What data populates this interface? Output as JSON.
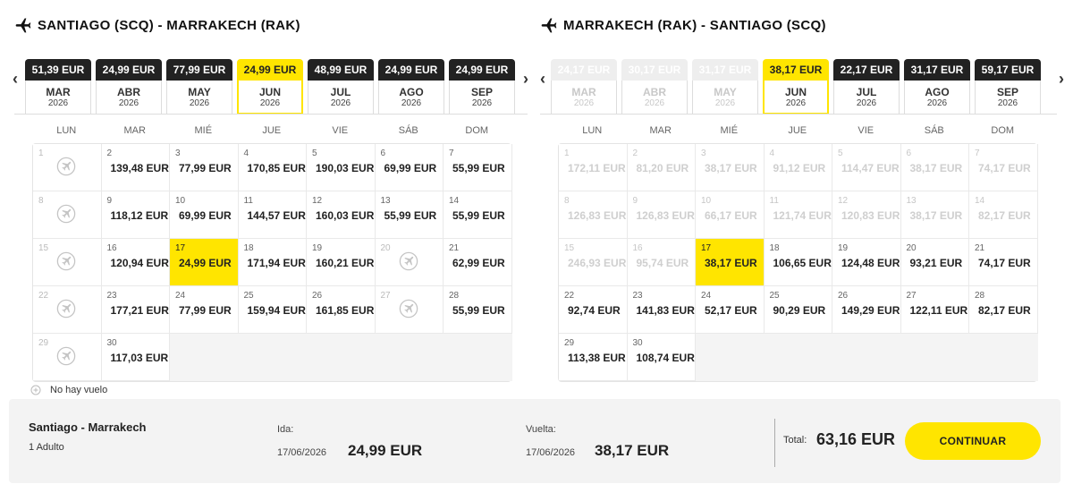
{
  "outbound": {
    "title": "SANTIAGO (SCQ) - MARRAKECH (RAK)",
    "months": [
      {
        "price": "51,39 EUR",
        "month": "MAR",
        "year": "2026",
        "state": "normal"
      },
      {
        "price": "24,99 EUR",
        "month": "ABR",
        "year": "2026",
        "state": "normal"
      },
      {
        "price": "77,99 EUR",
        "month": "MAY",
        "year": "2026",
        "state": "normal"
      },
      {
        "price": "24,99 EUR",
        "month": "JUN",
        "year": "2026",
        "state": "active"
      },
      {
        "price": "48,99 EUR",
        "month": "JUL",
        "year": "2026",
        "state": "normal"
      },
      {
        "price": "24,99 EUR",
        "month": "AGO",
        "year": "2026",
        "state": "normal"
      },
      {
        "price": "24,99 EUR",
        "month": "SEP",
        "year": "2026",
        "state": "normal"
      }
    ],
    "days": [
      {
        "d": "1",
        "p": "",
        "s": "noflight"
      },
      {
        "d": "2",
        "p": "139,48 EUR",
        "s": "normal"
      },
      {
        "d": "3",
        "p": "77,99 EUR",
        "s": "normal"
      },
      {
        "d": "4",
        "p": "170,85 EUR",
        "s": "normal"
      },
      {
        "d": "5",
        "p": "190,03 EUR",
        "s": "normal"
      },
      {
        "d": "6",
        "p": "69,99 EUR",
        "s": "normal"
      },
      {
        "d": "7",
        "p": "55,99 EUR",
        "s": "normal"
      },
      {
        "d": "8",
        "p": "",
        "s": "noflight"
      },
      {
        "d": "9",
        "p": "118,12 EUR",
        "s": "normal"
      },
      {
        "d": "10",
        "p": "69,99 EUR",
        "s": "normal"
      },
      {
        "d": "11",
        "p": "144,57 EUR",
        "s": "normal"
      },
      {
        "d": "12",
        "p": "160,03 EUR",
        "s": "normal"
      },
      {
        "d": "13",
        "p": "55,99 EUR",
        "s": "normal"
      },
      {
        "d": "14",
        "p": "55,99 EUR",
        "s": "normal"
      },
      {
        "d": "15",
        "p": "",
        "s": "noflight"
      },
      {
        "d": "16",
        "p": "120,94 EUR",
        "s": "normal"
      },
      {
        "d": "17",
        "p": "24,99 EUR",
        "s": "selected"
      },
      {
        "d": "18",
        "p": "171,94 EUR",
        "s": "normal"
      },
      {
        "d": "19",
        "p": "160,21 EUR",
        "s": "normal"
      },
      {
        "d": "20",
        "p": "",
        "s": "noflight"
      },
      {
        "d": "21",
        "p": "62,99 EUR",
        "s": "normal"
      },
      {
        "d": "22",
        "p": "",
        "s": "noflight"
      },
      {
        "d": "23",
        "p": "177,21 EUR",
        "s": "normal"
      },
      {
        "d": "24",
        "p": "77,99 EUR",
        "s": "normal"
      },
      {
        "d": "25",
        "p": "159,94 EUR",
        "s": "normal"
      },
      {
        "d": "26",
        "p": "161,85 EUR",
        "s": "normal"
      },
      {
        "d": "27",
        "p": "",
        "s": "noflight"
      },
      {
        "d": "28",
        "p": "55,99 EUR",
        "s": "normal"
      },
      {
        "d": "29",
        "p": "",
        "s": "noflight"
      },
      {
        "d": "30",
        "p": "117,03 EUR",
        "s": "normal"
      }
    ]
  },
  "inbound": {
    "title": "MARRAKECH (RAK) - SANTIAGO (SCQ)",
    "months": [
      {
        "price": "24,17 EUR",
        "month": "MAR",
        "year": "2026",
        "state": "disabled"
      },
      {
        "price": "30,17 EUR",
        "month": "ABR",
        "year": "2026",
        "state": "disabled"
      },
      {
        "price": "31,17 EUR",
        "month": "MAY",
        "year": "2026",
        "state": "disabled"
      },
      {
        "price": "38,17 EUR",
        "month": "JUN",
        "year": "2026",
        "state": "active"
      },
      {
        "price": "22,17 EUR",
        "month": "JUL",
        "year": "2026",
        "state": "normal"
      },
      {
        "price": "31,17 EUR",
        "month": "AGO",
        "year": "2026",
        "state": "normal"
      },
      {
        "price": "59,17 EUR",
        "month": "SEP",
        "year": "2026",
        "state": "normal"
      }
    ],
    "days": [
      {
        "d": "1",
        "p": "172,11 EUR",
        "s": "past"
      },
      {
        "d": "2",
        "p": "81,20 EUR",
        "s": "past"
      },
      {
        "d": "3",
        "p": "38,17 EUR",
        "s": "past"
      },
      {
        "d": "4",
        "p": "91,12 EUR",
        "s": "past"
      },
      {
        "d": "5",
        "p": "114,47 EUR",
        "s": "past"
      },
      {
        "d": "6",
        "p": "38,17 EUR",
        "s": "past"
      },
      {
        "d": "7",
        "p": "74,17 EUR",
        "s": "past"
      },
      {
        "d": "8",
        "p": "126,83 EUR",
        "s": "past"
      },
      {
        "d": "9",
        "p": "126,83 EUR",
        "s": "past"
      },
      {
        "d": "10",
        "p": "66,17 EUR",
        "s": "past"
      },
      {
        "d": "11",
        "p": "121,74 EUR",
        "s": "past"
      },
      {
        "d": "12",
        "p": "120,83 EUR",
        "s": "past"
      },
      {
        "d": "13",
        "p": "38,17 EUR",
        "s": "past"
      },
      {
        "d": "14",
        "p": "82,17 EUR",
        "s": "past"
      },
      {
        "d": "15",
        "p": "246,93 EUR",
        "s": "past"
      },
      {
        "d": "16",
        "p": "95,74 EUR",
        "s": "past"
      },
      {
        "d": "17",
        "p": "38,17 EUR",
        "s": "selected"
      },
      {
        "d": "18",
        "p": "106,65 EUR",
        "s": "normal"
      },
      {
        "d": "19",
        "p": "124,48 EUR",
        "s": "normal"
      },
      {
        "d": "20",
        "p": "93,21 EUR",
        "s": "normal"
      },
      {
        "d": "21",
        "p": "74,17 EUR",
        "s": "normal"
      },
      {
        "d": "22",
        "p": "92,74 EUR",
        "s": "normal"
      },
      {
        "d": "23",
        "p": "141,83 EUR",
        "s": "normal"
      },
      {
        "d": "24",
        "p": "52,17 EUR",
        "s": "normal"
      },
      {
        "d": "25",
        "p": "90,29 EUR",
        "s": "normal"
      },
      {
        "d": "26",
        "p": "149,29 EUR",
        "s": "normal"
      },
      {
        "d": "27",
        "p": "122,11 EUR",
        "s": "normal"
      },
      {
        "d": "28",
        "p": "82,17 EUR",
        "s": "normal"
      },
      {
        "d": "29",
        "p": "113,38 EUR",
        "s": "normal"
      },
      {
        "d": "30",
        "p": "108,74 EUR",
        "s": "normal"
      }
    ]
  },
  "weekdays": [
    "LUN",
    "MAR",
    "MIÉ",
    "JUE",
    "VIE",
    "SÁB",
    "DOM"
  ],
  "legend": {
    "no_flight": "No hay vuelo"
  },
  "summary": {
    "route": "Santiago - Marrakech",
    "passengers": "1 Adulto",
    "outbound_label": "Ida:",
    "outbound_date": "17/06/2026",
    "outbound_price": "24,99 EUR",
    "return_label": "Vuelta:",
    "return_date": "17/06/2026",
    "return_price": "38,17 EUR",
    "total_label": "Total:",
    "total_value": "63,16 EUR",
    "continue_label": "CONTINUAR"
  },
  "icons": {
    "plane": "airplane-icon",
    "no_flight": "no-flight-plane-icon",
    "prev": "chevron-left-icon",
    "next": "chevron-right-icon"
  },
  "colors": {
    "accent": "#ffe500",
    "dark": "#222222"
  }
}
